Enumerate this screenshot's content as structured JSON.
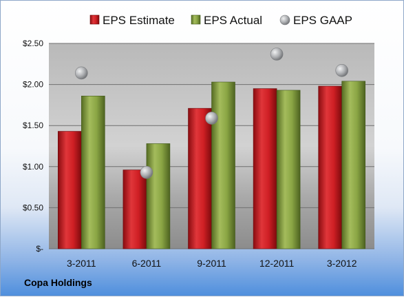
{
  "company": "Copa Holdings",
  "colors": {
    "estimate": "#c0181e",
    "actual": "#7f9a3a",
    "gaap": "#a9abae"
  },
  "chart_data": {
    "type": "bar",
    "categories": [
      "3-2011",
      "6-2011",
      "9-2011",
      "12-2011",
      "3-2012"
    ],
    "series": [
      {
        "name": "EPS Estimate",
        "kind": "bar",
        "values": [
          1.43,
          0.96,
          1.71,
          1.95,
          1.98
        ]
      },
      {
        "name": "EPS Actual",
        "kind": "bar",
        "values": [
          1.86,
          1.28,
          2.03,
          1.93,
          2.04
        ]
      },
      {
        "name": "EPS GAAP",
        "kind": "marker",
        "values": [
          2.14,
          0.93,
          1.59,
          2.37,
          2.17
        ]
      }
    ],
    "yticks": [
      "$-",
      "$0.50",
      "$1.00",
      "$1.50",
      "$2.00",
      "$2.50"
    ],
    "ylim": [
      0,
      2.5
    ],
    "grid": true,
    "legend_position": "top"
  }
}
